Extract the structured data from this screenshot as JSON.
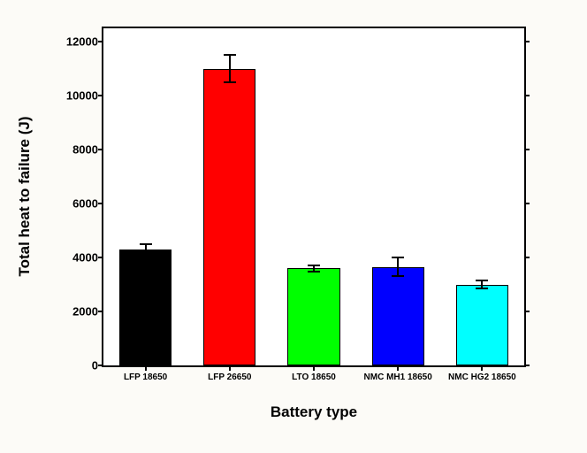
{
  "chart": {
    "type": "bar",
    "background_color": "#fcfbf7",
    "plot_bg": "#ffffff",
    "border_color": "#000000",
    "title": "",
    "xlabel": "Battery type",
    "ylabel": "Total heat to failure (J)",
    "label_fontsize": 17,
    "label_fontweight": "bold",
    "tick_fontsize": 13,
    "tick_fontweight": "bold",
    "ylim": [
      0,
      12500
    ],
    "ytick_step": 2000,
    "yticks": [
      0,
      2000,
      4000,
      6000,
      8000,
      10000,
      12000
    ],
    "categories": [
      "LFP 18650",
      "LFP 26650",
      "LTO 18650",
      "NMC MH1 18650",
      "NMC HG2 18650"
    ],
    "values": [
      4300,
      11000,
      3600,
      3650,
      3000
    ],
    "errors": [
      200,
      500,
      120,
      350,
      140
    ],
    "bar_colors": [
      "#000000",
      "#ff0000",
      "#00ff00",
      "#0000ff",
      "#00ffff"
    ],
    "bar_width": 0.62,
    "error_capwidth": 14
  }
}
